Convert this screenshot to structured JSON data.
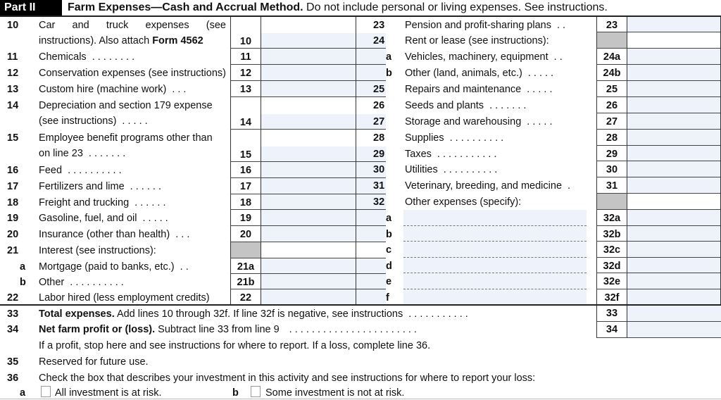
{
  "header": {
    "part": "Part II",
    "title_bold": "Farm Expenses—Cash and Accrual Method.",
    "title_rest": " Do not include personal or living expenses. See instructions."
  },
  "left_lines": [
    {
      "num": "10",
      "lines": [
        "Car and truck expenses (see",
        "instructions). Also attach "
      ],
      "bold_tail": "Form 4562",
      "box": "10",
      "justify": true
    },
    {
      "num": "11",
      "lines": [
        "Chemicals"
      ],
      "dots": ". . . . . . . .",
      "box": "11"
    },
    {
      "num": "12",
      "lines": [
        "Conservation expenses (see instructions)"
      ],
      "box": "12"
    },
    {
      "num": "13",
      "lines": [
        "Custom hire (machine work)"
      ],
      "dots": ". . .",
      "box": "13"
    },
    {
      "num": "14",
      "lines": [
        "Depreciation and section 179 expense",
        "(see instructions)"
      ],
      "dots": ". . . . .",
      "box": "14"
    },
    {
      "num": "15",
      "lines": [
        "Employee benefit programs other than",
        "on line 23"
      ],
      "dots": ". . . . . . .",
      "box": "15"
    },
    {
      "num": "16",
      "lines": [
        "Feed"
      ],
      "dots": ". . . . . . . . . .",
      "box": "16"
    },
    {
      "num": "17",
      "lines": [
        "Fertilizers and lime"
      ],
      "dots": ". . . . . .",
      "box": "17"
    },
    {
      "num": "18",
      "lines": [
        "Freight and trucking"
      ],
      "dots": ". . . . . .",
      "box": "18"
    },
    {
      "num": "19",
      "lines": [
        "Gasoline, fuel, and oil"
      ],
      "dots": ". . . . .",
      "box": "19"
    },
    {
      "num": "20",
      "lines": [
        "Insurance (other than health)"
      ],
      "dots": ". . .",
      "box": "20"
    },
    {
      "num": "21",
      "lines": [
        "Interest (see instructions):"
      ],
      "box": "",
      "gray": true
    },
    {
      "num": "a",
      "sub": true,
      "lines": [
        "Mortgage (paid to banks, etc.)"
      ],
      "dots": ". .",
      "box": "21a"
    },
    {
      "num": "b",
      "sub": true,
      "lines": [
        "Other"
      ],
      "dots": ". . . . . . . . . .",
      "box": "21b"
    },
    {
      "num": "22",
      "lines": [
        "Labor hired (less employment credits)"
      ],
      "box": "22"
    }
  ],
  "right_lines": [
    {
      "num": "23",
      "lines": [
        "Pension and profit-sharing plans"
      ],
      "dots": ". .",
      "box": "23"
    },
    {
      "num": "24",
      "lines": [
        "Rent or lease (see instructions):"
      ],
      "box": "",
      "gray": true
    },
    {
      "num": "a",
      "sub": true,
      "lines": [
        "Vehicles, machinery, equipment"
      ],
      "dots": ". .",
      "box": "24a"
    },
    {
      "num": "b",
      "sub": true,
      "lines": [
        "Other (land, animals, etc.)"
      ],
      "dots": ". . . . .",
      "box": "24b"
    },
    {
      "num": "25",
      "lines": [
        "Repairs and maintenance"
      ],
      "dots": ". . . . .",
      "box": "25"
    },
    {
      "num": "26",
      "lines": [
        "Seeds and plants"
      ],
      "dots": ". . . . . . .",
      "box": "26"
    },
    {
      "num": "27",
      "lines": [
        "Storage and warehousing"
      ],
      "dots": ". . . . .",
      "box": "27"
    },
    {
      "num": "28",
      "lines": [
        "Supplies"
      ],
      "dots": ". . . . . . . . . .",
      "box": "28"
    },
    {
      "num": "29",
      "lines": [
        "Taxes"
      ],
      "dots": ". . . . . . . . . . .",
      "box": "29"
    },
    {
      "num": "30",
      "lines": [
        "Utilities"
      ],
      "dots": ". . . . . . . . . .",
      "box": "30"
    },
    {
      "num": "31",
      "lines": [
        "Veterinary, breeding, and medicine"
      ],
      "dots": ".",
      "box": "31"
    },
    {
      "num": "32",
      "lines": [
        "Other expenses (specify):"
      ],
      "box": "",
      "gray": true
    },
    {
      "num": "a",
      "sub": true,
      "spec": true,
      "lines": [],
      "box": "32a"
    },
    {
      "num": "b",
      "sub": true,
      "spec": true,
      "lines": [],
      "box": "32b"
    },
    {
      "num": "c",
      "sub": true,
      "spec": true,
      "lines": [],
      "box": "32c"
    },
    {
      "num": "d",
      "sub": true,
      "spec": true,
      "lines": [],
      "box": "32d"
    },
    {
      "num": "e",
      "sub": true,
      "spec": true,
      "lines": [],
      "box": "32e"
    },
    {
      "num": "f",
      "sub": true,
      "spec": true,
      "lines": [],
      "box": "32f"
    }
  ],
  "bottom": {
    "l33": {
      "num": "33",
      "bold": "Total expenses.",
      "rest": " Add lines 10 through 32f. If line 32f is negative, see instructions",
      "dots": ". . . . . . . . . . .",
      "box": "33"
    },
    "l34": {
      "num": "34",
      "bold": "Net farm profit or (loss).",
      "rest": " Subtract line 33 from line 9",
      "dots": ". . . . . . . . . . . . . . . . . . . . . . .",
      "box": "34"
    },
    "l34_note": "If a profit, stop here and see instructions for where to report. If a loss, complete line 36.",
    "l35": {
      "num": "35",
      "text": "Reserved for future use."
    },
    "l36": {
      "num": "36",
      "text": "Check the box that describes your investment in this activity and see instructions for where to report your loss:"
    },
    "l36a": {
      "letter": "a",
      "label": "All investment is at risk.",
      "checked": false
    },
    "l36b": {
      "letter": "b",
      "label": "Some investment is not at risk.",
      "checked": false
    }
  },
  "colors": {
    "field_fill": "#eef2fb",
    "shaded_box": "#c4c4c4",
    "part_label_bg": "#000000"
  }
}
